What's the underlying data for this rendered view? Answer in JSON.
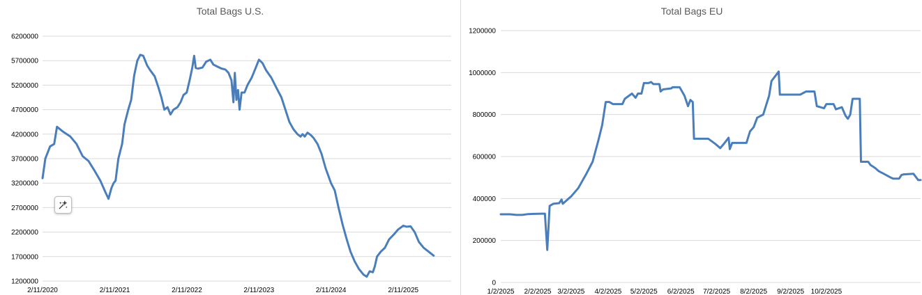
{
  "chart_data": [
    {
      "type": "line",
      "title": "Total Bags U.S.",
      "xlabel": "",
      "ylabel": "",
      "ylim": [
        1200000,
        6200000
      ],
      "yticks": [
        "1200000",
        "1700000",
        "2200000",
        "2700000",
        "3200000",
        "3700000",
        "4200000",
        "4700000",
        "5200000",
        "5700000",
        "6200000"
      ],
      "xticks": [
        "2/11/2020",
        "2/11/2021",
        "2/11/2022",
        "2/11/2023",
        "2/11/2024",
        "2/11/2025"
      ],
      "grid": true,
      "color": "#4a7ebb",
      "series": [
        {
          "points": [
            [
              "2020-02-11",
              3300000
            ],
            [
              "2020-02-25",
              3700000
            ],
            [
              "2020-03-20",
              3950000
            ],
            [
              "2020-04-10",
              4000000
            ],
            [
              "2020-04-24",
              4350000
            ],
            [
              "2020-05-25",
              4250000
            ],
            [
              "2020-07-01",
              4150000
            ],
            [
              "2020-08-01",
              4000000
            ],
            [
              "2020-09-01",
              3750000
            ],
            [
              "2020-10-01",
              3650000
            ],
            [
              "2020-11-01",
              3450000
            ],
            [
              "2020-11-30",
              3250000
            ],
            [
              "2020-12-25",
              3020000
            ],
            [
              "2021-01-10",
              2880000
            ],
            [
              "2021-01-25",
              3100000
            ],
            [
              "2021-02-05",
              3200000
            ],
            [
              "2021-02-15",
              3250000
            ],
            [
              "2021-03-01",
              3700000
            ],
            [
              "2021-03-20",
              4000000
            ],
            [
              "2021-04-01",
              4400000
            ],
            [
              "2021-04-20",
              4700000
            ],
            [
              "2021-05-05",
              4900000
            ],
            [
              "2021-05-20",
              5400000
            ],
            [
              "2021-06-05",
              5700000
            ],
            [
              "2021-06-20",
              5820000
            ],
            [
              "2021-07-05",
              5800000
            ],
            [
              "2021-07-25",
              5600000
            ],
            [
              "2021-08-10",
              5500000
            ],
            [
              "2021-09-01",
              5380000
            ],
            [
              "2021-09-20",
              5150000
            ],
            [
              "2021-10-05",
              4950000
            ],
            [
              "2021-10-20",
              4700000
            ],
            [
              "2021-11-05",
              4750000
            ],
            [
              "2021-11-20",
              4600000
            ],
            [
              "2021-12-05",
              4700000
            ],
            [
              "2021-12-25",
              4750000
            ],
            [
              "2022-01-10",
              4850000
            ],
            [
              "2022-01-25",
              5000000
            ],
            [
              "2022-02-10",
              5050000
            ],
            [
              "2022-02-25",
              5300000
            ],
            [
              "2022-03-10",
              5550000
            ],
            [
              "2022-03-20",
              5800000
            ],
            [
              "2022-03-28",
              5550000
            ],
            [
              "2022-04-10",
              5540000
            ],
            [
              "2022-05-01",
              5560000
            ],
            [
              "2022-05-20",
              5680000
            ],
            [
              "2022-06-10",
              5720000
            ],
            [
              "2022-06-25",
              5620000
            ],
            [
              "2022-07-15",
              5580000
            ],
            [
              "2022-08-05",
              5540000
            ],
            [
              "2022-08-25",
              5520000
            ],
            [
              "2022-09-10",
              5450000
            ],
            [
              "2022-09-25",
              5300000
            ],
            [
              "2022-10-05",
              4850000
            ],
            [
              "2022-10-12",
              5450000
            ],
            [
              "2022-10-20",
              4900000
            ],
            [
              "2022-10-28",
              5100000
            ],
            [
              "2022-11-05",
              4700000
            ],
            [
              "2022-11-15",
              5050000
            ],
            [
              "2022-11-30",
              5050000
            ],
            [
              "2022-12-15",
              5200000
            ],
            [
              "2023-01-05",
              5350000
            ],
            [
              "2023-01-25",
              5550000
            ],
            [
              "2023-02-11",
              5720000
            ],
            [
              "2023-03-01",
              5650000
            ],
            [
              "2023-03-20",
              5500000
            ],
            [
              "2023-04-15",
              5350000
            ],
            [
              "2023-05-10",
              5150000
            ],
            [
              "2023-06-05",
              4950000
            ],
            [
              "2023-06-25",
              4700000
            ],
            [
              "2023-07-15",
              4450000
            ],
            [
              "2023-08-05",
              4300000
            ],
            [
              "2023-08-25",
              4200000
            ],
            [
              "2023-09-10",
              4150000
            ],
            [
              "2023-09-20",
              4200000
            ],
            [
              "2023-10-01",
              4150000
            ],
            [
              "2023-10-15",
              4230000
            ],
            [
              "2023-11-01",
              4180000
            ],
            [
              "2023-11-15",
              4120000
            ],
            [
              "2023-12-05",
              4000000
            ],
            [
              "2023-12-25",
              3800000
            ],
            [
              "2024-01-15",
              3500000
            ],
            [
              "2024-02-11",
              3200000
            ],
            [
              "2024-03-01",
              3050000
            ],
            [
              "2024-03-20",
              2700000
            ],
            [
              "2024-04-10",
              2350000
            ],
            [
              "2024-05-01",
              2050000
            ],
            [
              "2024-05-20",
              1800000
            ],
            [
              "2024-06-10",
              1600000
            ],
            [
              "2024-07-01",
              1450000
            ],
            [
              "2024-07-25",
              1330000
            ],
            [
              "2024-08-10",
              1290000
            ],
            [
              "2024-08-25",
              1400000
            ],
            [
              "2024-09-10",
              1380000
            ],
            [
              "2024-09-20",
              1500000
            ],
            [
              "2024-10-01",
              1700000
            ],
            [
              "2024-10-20",
              1800000
            ],
            [
              "2024-11-10",
              1880000
            ],
            [
              "2024-12-01",
              2050000
            ],
            [
              "2024-12-25",
              2150000
            ],
            [
              "2025-01-15",
              2250000
            ],
            [
              "2025-02-11",
              2330000
            ],
            [
              "2025-03-01",
              2310000
            ],
            [
              "2025-03-20",
              2320000
            ],
            [
              "2025-04-10",
              2200000
            ],
            [
              "2025-05-01",
              2000000
            ],
            [
              "2025-05-25",
              1880000
            ],
            [
              "2025-06-20",
              1800000
            ],
            [
              "2025-07-15",
              1720000
            ]
          ]
        }
      ]
    },
    {
      "type": "line",
      "title": "Total Bags EU",
      "xlabel": "",
      "ylabel": "",
      "ylim": [
        0,
        1200000
      ],
      "yticks": [
        "0",
        "200000",
        "400000",
        "600000",
        "800000",
        "1000000",
        "1200000"
      ],
      "xticks": [
        "1/2/2025",
        "2/2/2025",
        "3/2/2025",
        "4/2/2025",
        "5/2/2025",
        "6/2/2025",
        "7/2/2025",
        "8/2/2025",
        "9/2/2025",
        "10/2/2025"
      ],
      "grid": true,
      "color": "#4a7ebb",
      "series": [
        {
          "points": [
            [
              "2025-01-02",
              325000
            ],
            [
              "2025-01-10",
              325000
            ],
            [
              "2025-01-15",
              322000
            ],
            [
              "2025-01-20",
              322000
            ],
            [
              "2025-01-25",
              326000
            ],
            [
              "2025-02-05",
              328000
            ],
            [
              "2025-02-08",
              328000
            ],
            [
              "2025-02-10",
              155000
            ],
            [
              "2025-02-12",
              365000
            ],
            [
              "2025-02-15",
              375000
            ],
            [
              "2025-02-20",
              378000
            ],
            [
              "2025-02-22",
              395000
            ],
            [
              "2025-02-23",
              375000
            ],
            [
              "2025-02-28",
              400000
            ],
            [
              "2025-03-02",
              410000
            ],
            [
              "2025-03-08",
              450000
            ],
            [
              "2025-03-15",
              520000
            ],
            [
              "2025-03-20",
              575000
            ],
            [
              "2025-03-25",
              680000
            ],
            [
              "2025-03-28",
              750000
            ],
            [
              "2025-03-31",
              860000
            ],
            [
              "2025-04-03",
              860000
            ],
            [
              "2025-04-06",
              850000
            ],
            [
              "2025-04-14",
              850000
            ],
            [
              "2025-04-16",
              875000
            ],
            [
              "2025-04-22",
              900000
            ],
            [
              "2025-04-25",
              880000
            ],
            [
              "2025-04-27",
              900000
            ],
            [
              "2025-04-30",
              900000
            ],
            [
              "2025-05-02",
              950000
            ],
            [
              "2025-05-06",
              950000
            ],
            [
              "2025-05-08",
              955000
            ],
            [
              "2025-05-10",
              945000
            ],
            [
              "2025-05-15",
              945000
            ],
            [
              "2025-05-16",
              910000
            ],
            [
              "2025-05-18",
              920000
            ],
            [
              "2025-05-25",
              925000
            ],
            [
              "2025-05-26",
              930000
            ],
            [
              "2025-06-01",
              930000
            ],
            [
              "2025-06-05",
              890000
            ],
            [
              "2025-06-08",
              840000
            ],
            [
              "2025-06-10",
              870000
            ],
            [
              "2025-06-12",
              860000
            ],
            [
              "2025-06-13",
              685000
            ],
            [
              "2025-06-25",
              685000
            ],
            [
              "2025-07-01",
              660000
            ],
            [
              "2025-07-05",
              640000
            ],
            [
              "2025-07-08",
              660000
            ],
            [
              "2025-07-12",
              690000
            ],
            [
              "2025-07-13",
              635000
            ],
            [
              "2025-07-15",
              665000
            ],
            [
              "2025-07-27",
              665000
            ],
            [
              "2025-07-30",
              720000
            ],
            [
              "2025-08-02",
              740000
            ],
            [
              "2025-08-05",
              785000
            ],
            [
              "2025-08-10",
              800000
            ],
            [
              "2025-08-15",
              890000
            ],
            [
              "2025-08-17",
              960000
            ],
            [
              "2025-08-21",
              990000
            ],
            [
              "2025-08-23",
              1005000
            ],
            [
              "2025-08-24",
              895000
            ],
            [
              "2025-09-10",
              895000
            ],
            [
              "2025-09-15",
              910000
            ],
            [
              "2025-09-22",
              910000
            ],
            [
              "2025-09-24",
              840000
            ],
            [
              "2025-09-30",
              830000
            ],
            [
              "2025-10-02",
              850000
            ],
            [
              "2025-10-08",
              850000
            ],
            [
              "2025-10-10",
              825000
            ],
            [
              "2025-10-15",
              835000
            ],
            [
              "2025-10-18",
              795000
            ],
            [
              "2025-10-20",
              780000
            ],
            [
              "2025-10-22",
              800000
            ],
            [
              "2025-10-24",
              875000
            ],
            [
              "2025-10-30",
              875000
            ],
            [
              "2025-10-31",
              575000
            ],
            [
              "2025-11-06",
              575000
            ],
            [
              "2025-11-08",
              560000
            ],
            [
              "2025-11-12",
              545000
            ],
            [
              "2025-11-15",
              530000
            ],
            [
              "2025-11-20",
              515000
            ],
            [
              "2025-11-25",
              500000
            ],
            [
              "2025-11-27",
              495000
            ],
            [
              "2025-12-02",
              495000
            ],
            [
              "2025-12-04",
              512000
            ],
            [
              "2025-12-06",
              515000
            ],
            [
              "2025-12-14",
              518000
            ],
            [
              "2025-12-18",
              488000
            ],
            [
              "2025-12-20",
              488000
            ]
          ]
        }
      ]
    }
  ],
  "ui": {
    "sparkle_icon": "sparkle-wand-icon"
  }
}
